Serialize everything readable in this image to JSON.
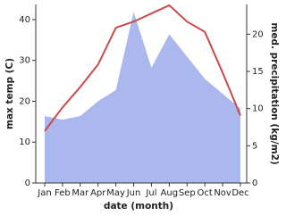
{
  "chart_data": {
    "type": "line-area",
    "x_label": "date (month)",
    "y_label": "max temp (C)",
    "y2_label": "med. precipitation (kg/m2)",
    "categories": [
      "Jan",
      "Feb",
      "Mar",
      "Apr",
      "May",
      "Jun",
      "Jul",
      "Aug",
      "Sep",
      "Oct",
      "Nov",
      "Dec"
    ],
    "series": [
      {
        "name": "max temp",
        "type": "line",
        "color": "#c94a4a",
        "axis": "y",
        "values": [
          12.7,
          18.5,
          23.5,
          29,
          38,
          39.5,
          41.5,
          43.5,
          39.5,
          37,
          27,
          16.5
        ]
      },
      {
        "name": "precipitation",
        "type": "area",
        "color": "#aab8ee",
        "axis": "y2",
        "values": [
          9,
          8.5,
          9,
          11,
          12.5,
          23,
          15.5,
          20,
          17,
          14,
          12,
          10
        ]
      }
    ],
    "ylim": [
      0,
      43.7
    ],
    "yticks": [
      0,
      10,
      20,
      30,
      40
    ],
    "y2lim": [
      0,
      24
    ],
    "y2ticks": [
      0,
      5,
      10,
      15,
      20
    ]
  }
}
